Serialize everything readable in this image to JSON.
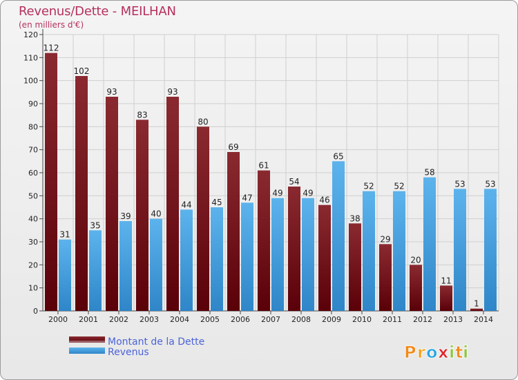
{
  "header": {
    "title": "Revenus/Dette - MEILHAN",
    "subtitle": "(en milliers d'€)"
  },
  "brand": {
    "letters": [
      "P",
      "r",
      "o",
      "x",
      "i",
      "t",
      "i"
    ],
    "colors": [
      "#f08a1a",
      "#f4a21a",
      "#2aa6df",
      "#e0262a",
      "#8cc63f",
      "#f08a1a",
      "#8cc63f"
    ]
  },
  "colors": {
    "dette": "#7a1018",
    "revenus": "#3d9de0",
    "title": "#b5305e",
    "legend_text": "#4b63d8"
  },
  "chart_data": {
    "type": "bar",
    "title": "Revenus/Dette - MEILHAN",
    "subtitle": "(en milliers d'€)",
    "categories": [
      "2000",
      "2001",
      "2002",
      "2003",
      "2004",
      "2005",
      "2006",
      "2007",
      "2008",
      "2009",
      "2010",
      "2011",
      "2012",
      "2013",
      "2014"
    ],
    "series": [
      {
        "name": "Montant de la Dette",
        "values": [
          112,
          102,
          93,
          83,
          93,
          80,
          69,
          61,
          54,
          46,
          38,
          29,
          20,
          11,
          1
        ]
      },
      {
        "name": "Revenus",
        "values": [
          31,
          35,
          39,
          40,
          44,
          45,
          47,
          49,
          49,
          65,
          52,
          52,
          58,
          53,
          53
        ]
      }
    ],
    "ylim": [
      0,
      120
    ],
    "yticks": [
      0,
      10,
      20,
      30,
      40,
      50,
      60,
      70,
      80,
      90,
      100,
      110,
      120
    ],
    "grid": true,
    "legend_position": "bottom-left"
  }
}
